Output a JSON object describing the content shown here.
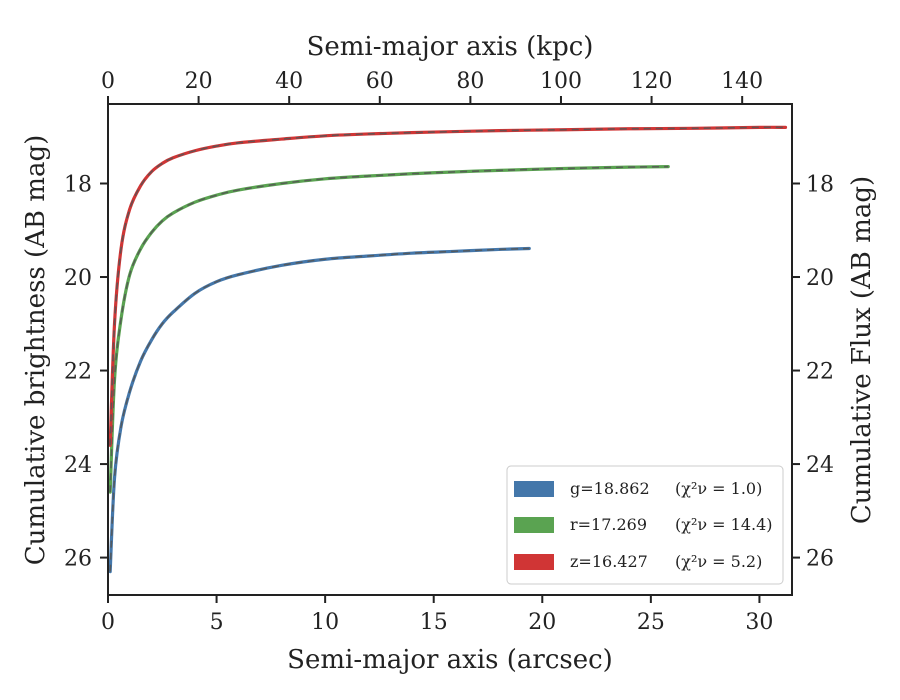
{
  "chart_data": {
    "type": "line",
    "title": "",
    "xlabel": "Semi-major axis (arcsec)",
    "x2label": "Semi-major axis (kpc)",
    "ylabel": "Cumulative brightness (AB mag)",
    "y2label": "Cumulative Flux (AB mag)",
    "xlim": [
      0,
      31.5
    ],
    "x2lim": [
      0,
      151
    ],
    "ylim": [
      26.8,
      16.3
    ],
    "y_inverted": true,
    "xticks": [
      0,
      5,
      10,
      15,
      20,
      25,
      30
    ],
    "x2ticks": [
      0,
      20,
      40,
      60,
      80,
      100,
      120,
      140
    ],
    "yticks": [
      18,
      20,
      22,
      24,
      26
    ],
    "grid": false,
    "legend_position": "bottom-right",
    "series": [
      {
        "name": "g=18.862",
        "chi_label": "(χ²ν = 1.0)",
        "color": "#4477aa",
        "x": [
          0.1,
          0.3,
          0.6,
          1.0,
          1.5,
          2.0,
          2.5,
          3.0,
          4.0,
          5.0,
          6.0,
          8.0,
          10.0,
          12.0,
          14.0,
          16.0,
          18.0,
          19.4
        ],
        "y": [
          26.3,
          24.3,
          23.2,
          22.45,
          21.8,
          21.35,
          21.0,
          20.75,
          20.35,
          20.1,
          19.95,
          19.75,
          19.62,
          19.55,
          19.49,
          19.45,
          19.41,
          19.39
        ]
      },
      {
        "name": "r=17.269",
        "chi_label": "(χ²ν = 14.4)",
        "color": "#5aa351",
        "x": [
          0.1,
          0.3,
          0.6,
          1.0,
          1.5,
          2.0,
          2.5,
          3.0,
          4.0,
          5.0,
          6.0,
          8.0,
          10.0,
          12.0,
          15.0,
          18.0,
          21.0,
          24.0,
          25.8
        ],
        "y": [
          24.6,
          22.2,
          20.9,
          19.95,
          19.4,
          19.05,
          18.8,
          18.63,
          18.4,
          18.25,
          18.14,
          18.0,
          17.9,
          17.84,
          17.77,
          17.72,
          17.68,
          17.65,
          17.64
        ]
      },
      {
        "name": "z=16.427",
        "chi_label": "(χ²ν = 5.2)",
        "color": "#d03535",
        "x": [
          0.1,
          0.3,
          0.6,
          1.0,
          1.5,
          2.0,
          2.5,
          3.0,
          4.0,
          5.0,
          6.0,
          8.0,
          10.0,
          12.0,
          15.0,
          18.0,
          21.0,
          24.0,
          27.0,
          30.0,
          31.2
        ],
        "y": [
          23.6,
          21.0,
          19.4,
          18.55,
          18.05,
          17.75,
          17.57,
          17.45,
          17.3,
          17.2,
          17.13,
          17.05,
          16.98,
          16.94,
          16.9,
          16.87,
          16.85,
          16.83,
          16.82,
          16.8,
          16.8
        ]
      }
    ]
  }
}
